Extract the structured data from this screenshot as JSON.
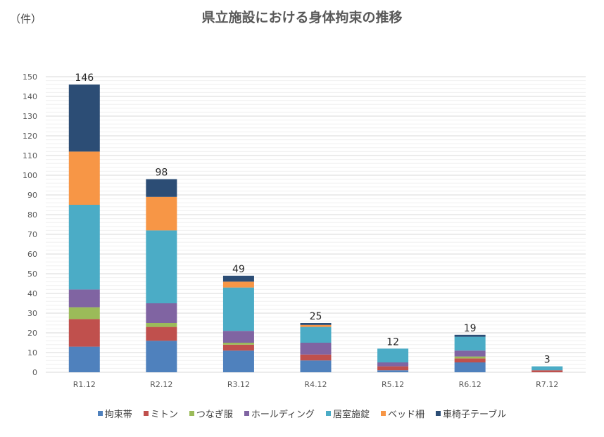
{
  "chart_data": {
    "type": "bar",
    "stacked": true,
    "title": "県立施設における身体拘束の推移",
    "unit_label": "（件）",
    "categories": [
      "R1.12",
      "R2.12",
      "R3.12",
      "R4.12",
      "R5.12",
      "R6.12",
      "R7.12"
    ],
    "series": [
      {
        "name": "拘束帯",
        "color": "#4f81bd",
        "values": [
          13,
          16,
          11,
          6,
          1,
          5,
          0
        ]
      },
      {
        "name": "ミトン",
        "color": "#c0504d",
        "values": [
          14,
          7,
          3,
          3,
          2,
          2,
          1
        ]
      },
      {
        "name": "つなぎ服",
        "color": "#9bbb59",
        "values": [
          6,
          2,
          1,
          0,
          0,
          1,
          0
        ]
      },
      {
        "name": "ホールディング",
        "color": "#8064a2",
        "values": [
          9,
          10,
          6,
          6,
          2,
          3,
          0
        ]
      },
      {
        "name": "居室施錠",
        "color": "#4bacc6",
        "values": [
          43,
          37,
          22,
          8,
          7,
          7,
          2
        ]
      },
      {
        "name": "ベッド柵",
        "color": "#f79646",
        "values": [
          27,
          17,
          3,
          1,
          0,
          0,
          0
        ]
      },
      {
        "name": "車椅子テーブル",
        "color": "#2c4d75",
        "values": [
          34,
          9,
          3,
          1,
          0,
          1,
          0
        ]
      }
    ],
    "totals": [
      "146",
      "98",
      "49",
      "25",
      "12",
      "19",
      "3"
    ],
    "ylim": [
      0,
      150
    ],
    "yticks": [
      "0",
      "10",
      "20",
      "30",
      "40",
      "50",
      "60",
      "70",
      "80",
      "90",
      "100",
      "110",
      "120",
      "130",
      "140",
      "150"
    ],
    "grid": true,
    "legend_position": "bottom"
  }
}
